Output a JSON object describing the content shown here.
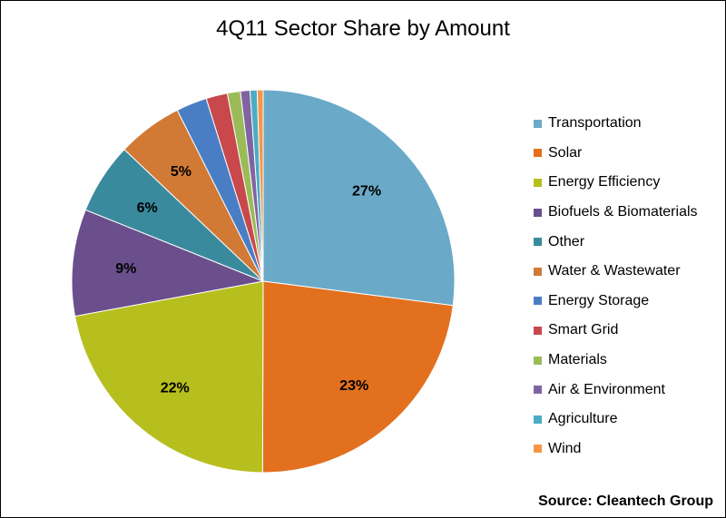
{
  "chart_data": {
    "type": "pie",
    "title": "4Q11 Sector Share by Amount",
    "source": "Source: Cleantech Group",
    "legend_position": "right",
    "slices": [
      {
        "name": "Transportation",
        "value": 27,
        "label": "27%",
        "color": "#6aaac8"
      },
      {
        "name": "Solar",
        "value": 23,
        "label": "23%",
        "color": "#e2701e"
      },
      {
        "name": "Energy Efficiency",
        "value": 22,
        "label": "22%",
        "color": "#b7bf1e"
      },
      {
        "name": "Biofuels & Biomaterials",
        "value": 9,
        "label": "9%",
        "color": "#6a4f8c"
      },
      {
        "name": "Other",
        "value": 6,
        "label": "6%",
        "color": "#3a8a9e"
      },
      {
        "name": "Water & Wastewater",
        "value": 5.5,
        "label": "5%",
        "color": "#d07a36"
      },
      {
        "name": "Energy Storage",
        "value": 2.6,
        "label": "",
        "color": "#4a7ec4"
      },
      {
        "name": "Smart Grid",
        "value": 1.8,
        "label": "",
        "color": "#c8484b"
      },
      {
        "name": "Materials",
        "value": 1.1,
        "label": "",
        "color": "#9bbb59"
      },
      {
        "name": "Air & Environment",
        "value": 0.8,
        "label": "",
        "color": "#8064a2"
      },
      {
        "name": "Agriculture",
        "value": 0.6,
        "label": "",
        "color": "#4bacc6"
      },
      {
        "name": "Wind",
        "value": 0.5,
        "label": "",
        "color": "#f79646"
      }
    ]
  }
}
